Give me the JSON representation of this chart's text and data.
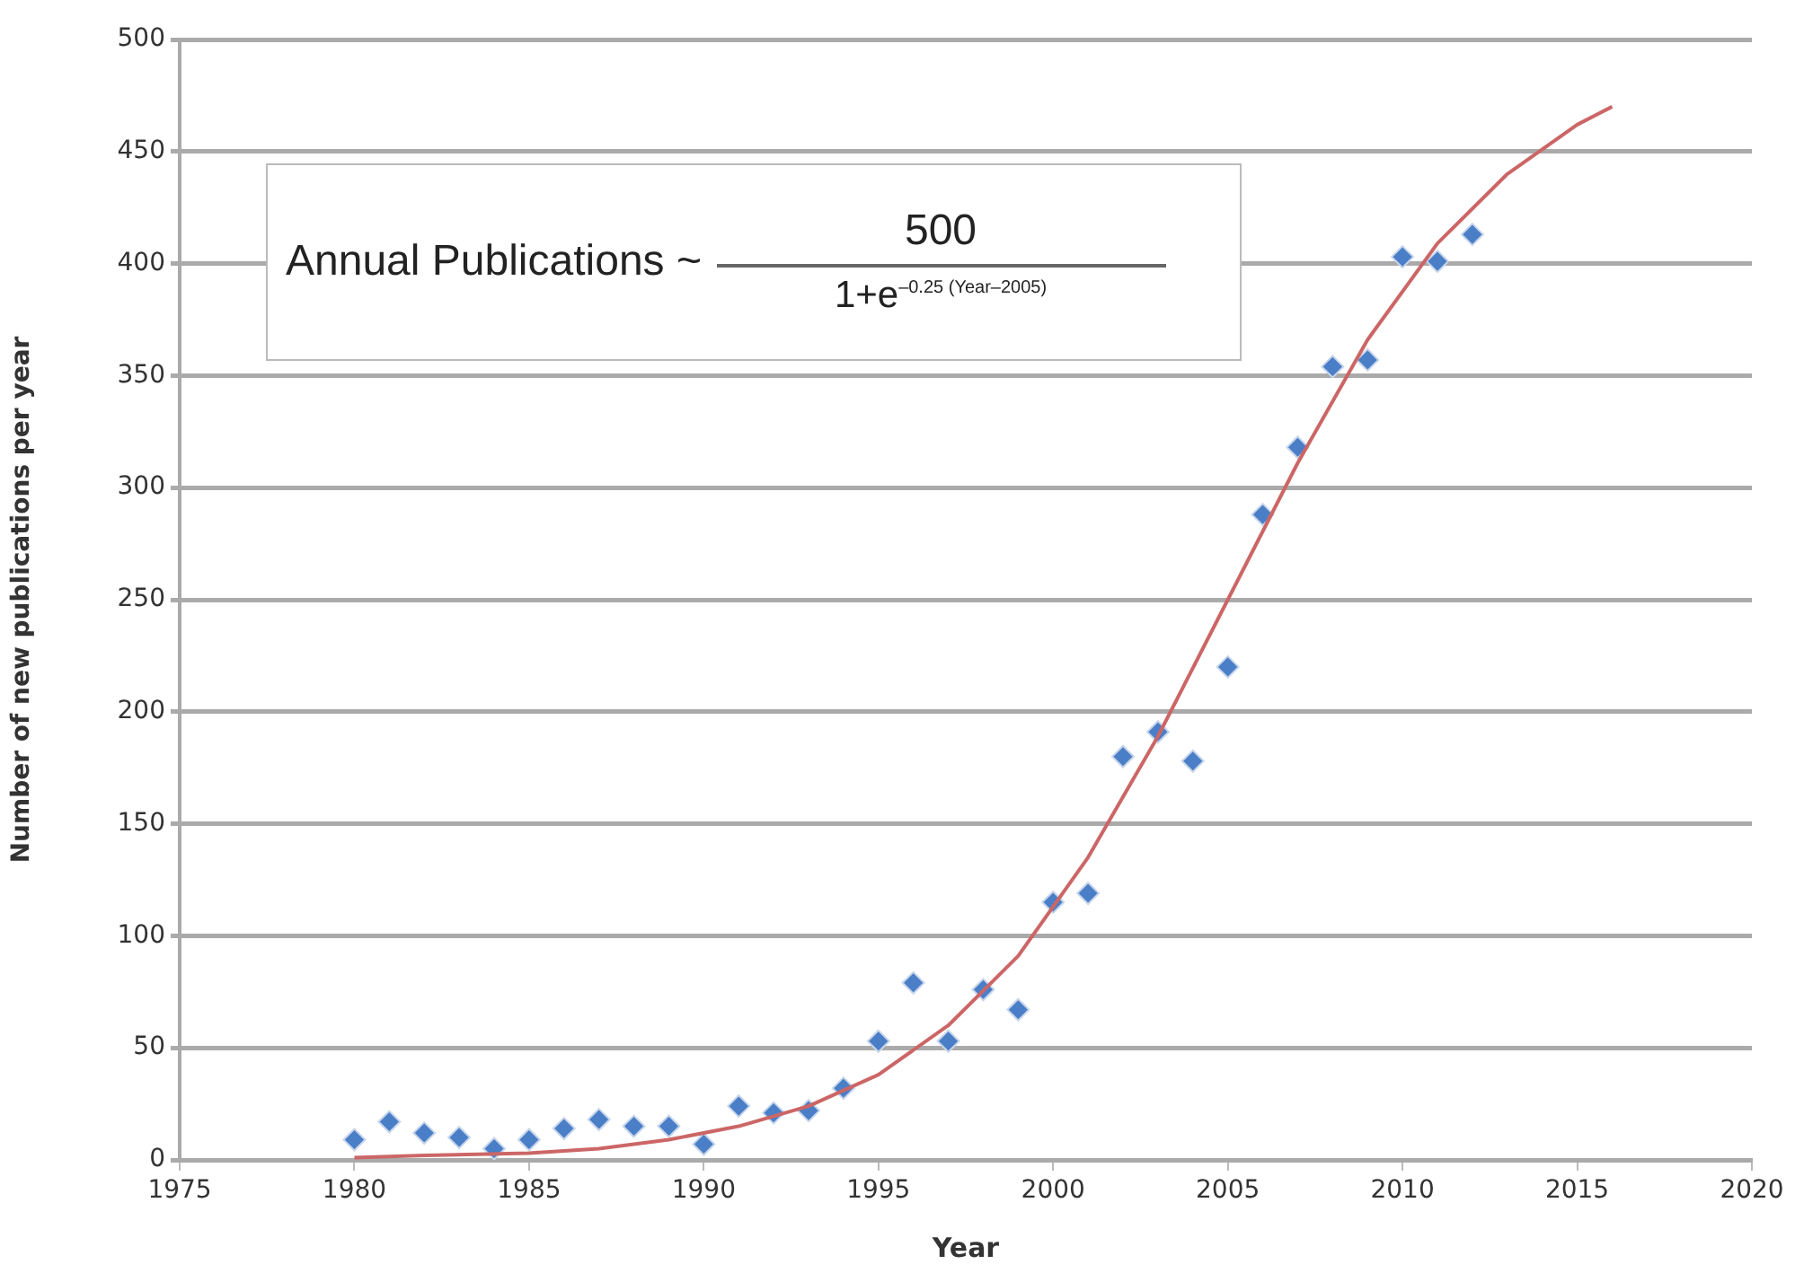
{
  "chart_data": {
    "type": "scatter",
    "xlabel": "Year",
    "ylabel": "Number of new publications per year",
    "annotations": [
      "Annual Publications ~",
      "500",
      "1+e$^{–0.25 (Year–2005)}$"
    ],
    "x": [
      1980,
      1981,
      1982,
      1983,
      1984,
      1985,
      1986,
      1987,
      1988,
      1989,
      1990,
      1991,
      1992,
      1993,
      1994,
      1995,
      1996,
      1997,
      1998,
      1999,
      2000,
      2001,
      2002,
      2003,
      2004,
      2005,
      2006,
      2007,
      2008,
      2009,
      2010,
      2011,
      2012
    ],
    "series": [
      {
        "color": "#4a7fc8",
        "marker": "diamond",
        "values": [
          9,
          17,
          12,
          10,
          5,
          9,
          14,
          18,
          15,
          15,
          7,
          24,
          21,
          22,
          32,
          53,
          79,
          53,
          76,
          67,
          115,
          119,
          180,
          191,
          178,
          220,
          288,
          318,
          354,
          357,
          403,
          401,
          413
        ]
      },
      {
        "type": "line",
        "color": "#cc6666",
        "marker": "none",
        "x": [
          1980,
          1982,
          1985,
          1987,
          1989,
          1991,
          1993,
          1995,
          1997,
          1999,
          2001,
          2003,
          2005,
          2007,
          2009,
          2011,
          2013,
          2015,
          2016
        ],
        "values": [
          1,
          2,
          3,
          5,
          9,
          15,
          24,
          38,
          60,
          91,
          135,
          189,
          250,
          311,
          366,
          409,
          440,
          462,
          470
        ]
      }
    ],
    "xlim": [
      1975,
      2020
    ],
    "xticks": [
      1975,
      1980,
      1985,
      1990,
      1995,
      2000,
      2005,
      2010,
      2015,
      2020
    ],
    "ylim": [
      0,
      500
    ],
    "yticks": [
      0,
      50,
      100,
      150,
      200,
      250,
      300,
      350,
      400,
      450,
      500
    ],
    "grid": "y",
    "legend": false
  }
}
